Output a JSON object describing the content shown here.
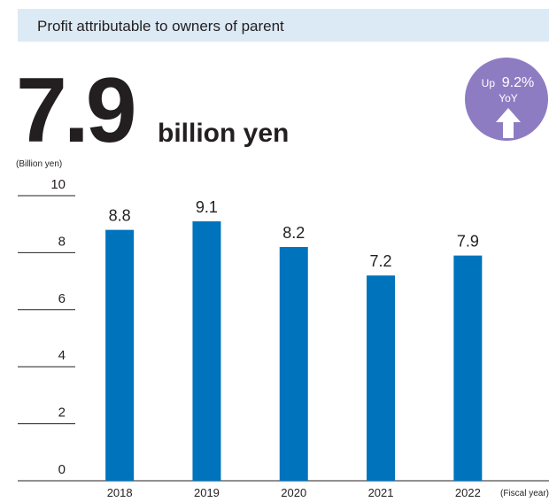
{
  "chart_data": {
    "type": "bar",
    "title": "Profit attributable to owners of parent",
    "headline_unit": "billion yen",
    "annotations": [
      "Up",
      "9.2%",
      "YoY"
    ],
    "y_label": "(Billion yen)",
    "x_label": "(Fiscal year)",
    "categories": [
      "2018",
      "2019",
      "2020",
      "2021",
      "2022"
    ],
    "values": [
      8.8,
      9.1,
      8.2,
      7.2,
      7.9
    ],
    "color": "#0073bd",
    "ylim": [
      0,
      10
    ],
    "yticks": [
      0,
      2,
      4,
      6,
      8,
      10
    ],
    "grid": true
  }
}
